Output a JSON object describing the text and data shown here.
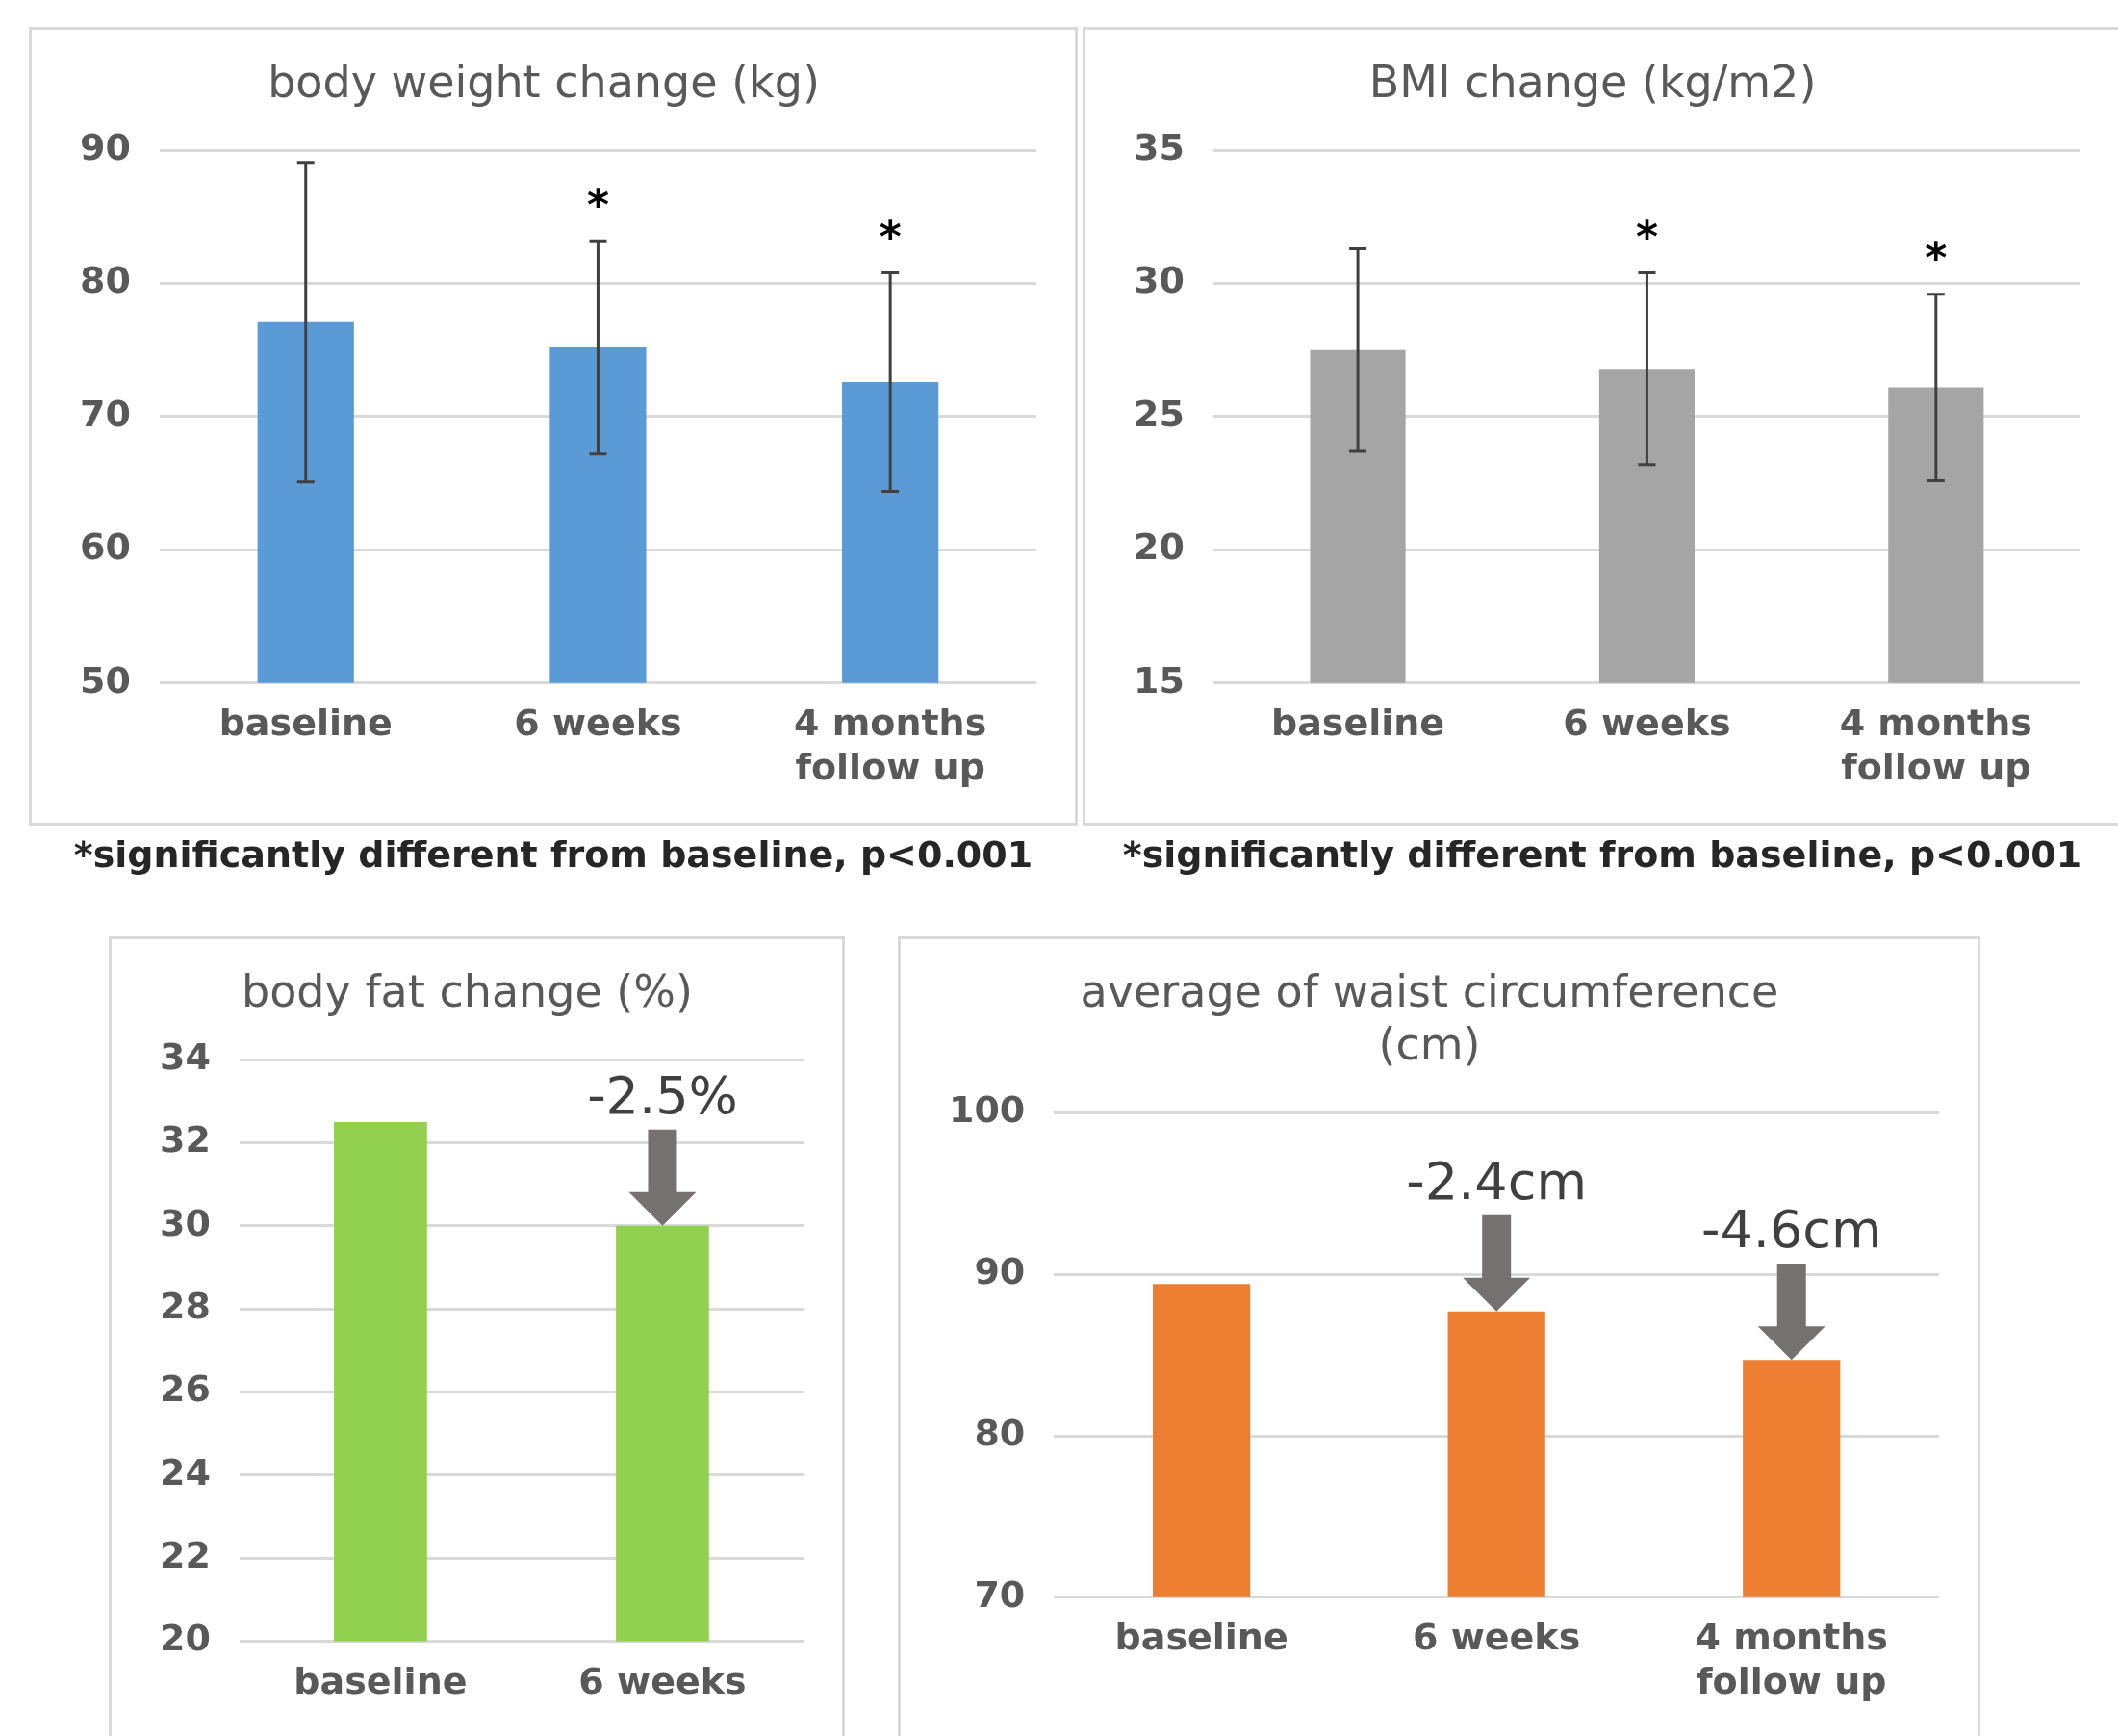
{
  "chart_data": [
    {
      "type": "bar",
      "title": "body weight change (kg)",
      "categories": [
        "baseline",
        "6 weeks",
        "4 months follow up"
      ],
      "values": [
        77.1,
        75.2,
        72.6
      ],
      "errors": [
        12,
        8,
        8.2
      ],
      "color": "#5b9bd5",
      "ylim": [
        50,
        90
      ],
      "yticks": [
        50,
        60,
        70,
        80,
        90
      ],
      "grid": "y",
      "legend": false,
      "annotations": [
        {
          "text": "*",
          "x": "6 weeks",
          "y": 83.2
        },
        {
          "text": "*",
          "x": "4 months follow up",
          "y": 80.8
        },
        "*significantly different from baseline, p<0.001"
      ]
    },
    {
      "type": "bar",
      "title": "BMI change (kg/m2)",
      "categories": [
        "baseline",
        "6 weeks",
        "4 months follow up"
      ],
      "values": [
        27.5,
        26.8,
        26.1
      ],
      "errors": [
        3.8,
        3.6,
        3.5
      ],
      "color": "#a5a5a5",
      "ylim": [
        15,
        35
      ],
      "yticks": [
        15,
        20,
        25,
        30,
        35
      ],
      "grid": "y",
      "legend": false,
      "annotations": [
        {
          "text": "*",
          "x": "6 weeks",
          "y": 30.4
        },
        {
          "text": "*",
          "x": "4 months follow up",
          "y": 29.6
        },
        "*significantly different from baseline, p<0.001"
      ]
    },
    {
      "type": "bar",
      "title": "body fat change (%)",
      "categories": [
        "baseline",
        "6 weeks"
      ],
      "values": [
        32.5,
        30
      ],
      "color": "#92d050",
      "ylim": [
        20,
        34
      ],
      "yticks": [
        20,
        22,
        24,
        26,
        28,
        30,
        32,
        34
      ],
      "grid": "y",
      "legend": false,
      "annotations": [
        {
          "text": "-2.5%",
          "x": "6 weeks",
          "y": 30
        }
      ]
    },
    {
      "type": "bar",
      "title": "average of waist circumference (cm)",
      "categories": [
        "baseline",
        "6 weeks",
        "4 months follow up"
      ],
      "values": [
        89.4,
        87.7,
        84.7
      ],
      "color": "#ed7d31",
      "ylim": [
        70,
        100
      ],
      "yticks": [
        70,
        80,
        90,
        100
      ],
      "grid": "y",
      "legend": false,
      "annotations": [
        {
          "text": "-2.4cm",
          "x": "6 weeks",
          "y": 87.7
        },
        {
          "text": "-4.6cm",
          "x": "4 months follow up",
          "y": 84.7
        }
      ]
    }
  ]
}
